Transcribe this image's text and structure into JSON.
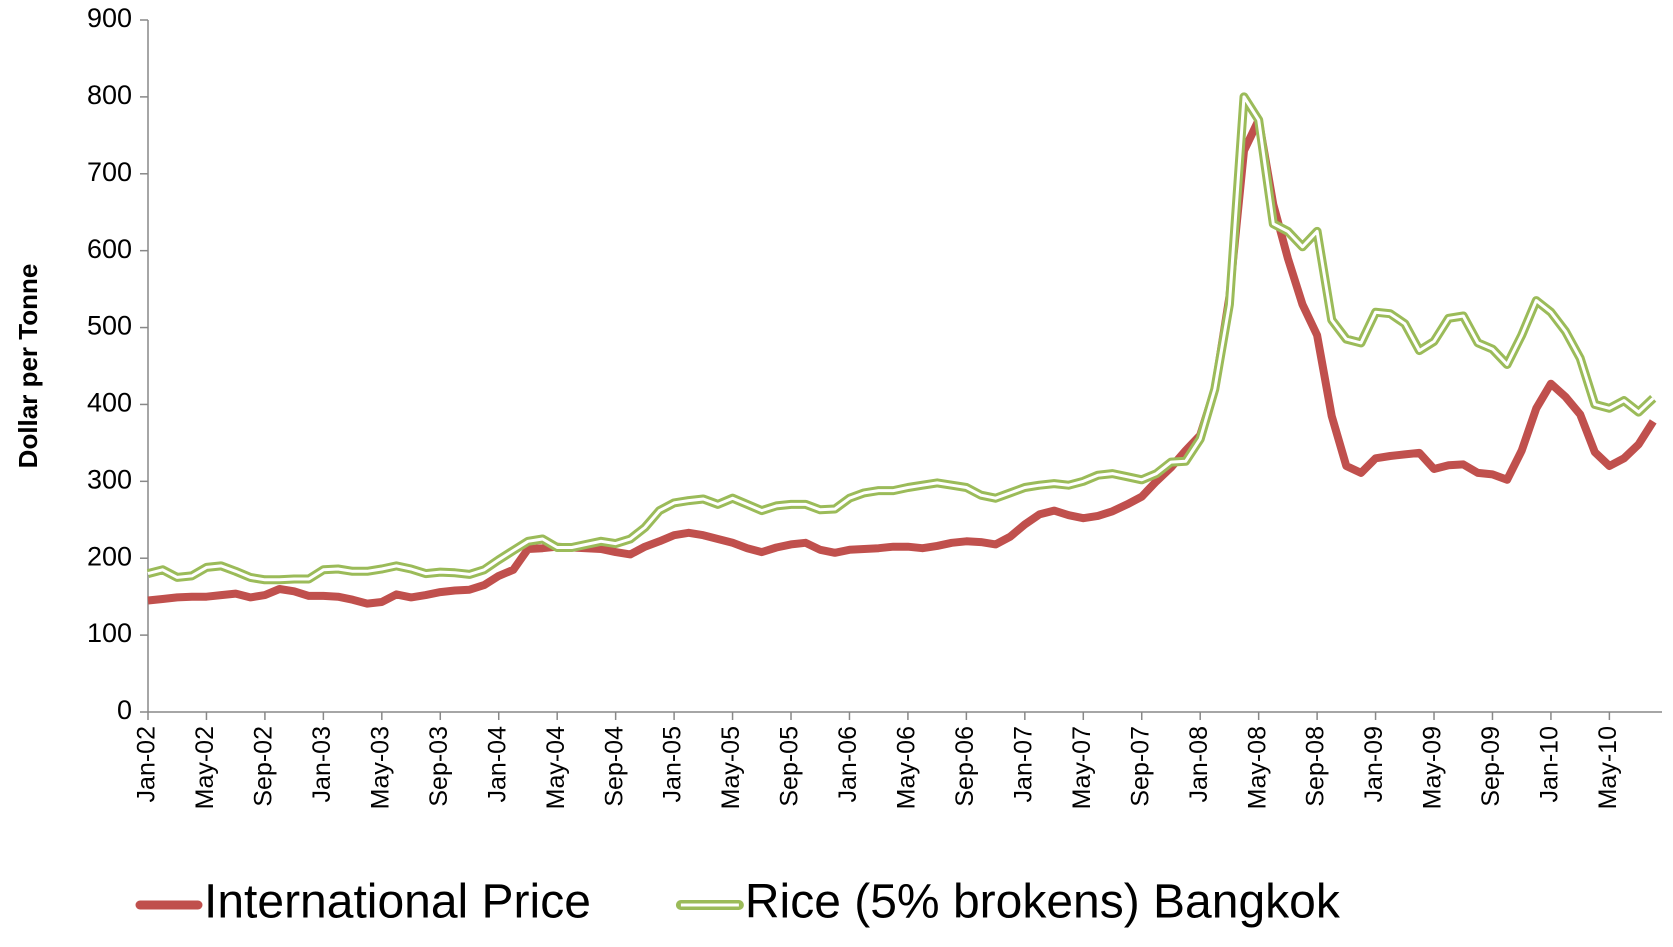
{
  "chart_data": {
    "type": "line",
    "y_label": "Dollar per Tonne",
    "categories": [
      "Jan-02",
      null,
      null,
      null,
      "May-02",
      null,
      null,
      null,
      "Sep-02",
      null,
      null,
      null,
      "Jan-03",
      null,
      null,
      null,
      "May-03",
      null,
      null,
      null,
      "Sep-03",
      null,
      null,
      null,
      "Jan-04",
      null,
      null,
      null,
      "May-04",
      null,
      null,
      null,
      "Sep-04",
      null,
      null,
      null,
      "Jan-05",
      null,
      null,
      null,
      "May-05",
      null,
      null,
      null,
      "Sep-05",
      null,
      null,
      null,
      "Jan-06",
      null,
      null,
      null,
      "May-06",
      null,
      null,
      null,
      "Sep-06",
      null,
      null,
      null,
      "Jan-07",
      null,
      null,
      null,
      "May-07",
      null,
      null,
      null,
      "Sep-07",
      null,
      null,
      null,
      "Jan-08",
      null,
      null,
      null,
      "May-08",
      null,
      null,
      null,
      "Sep-08",
      null,
      null,
      null,
      "Jan-09",
      null,
      null,
      null,
      "May-09",
      null,
      null,
      null,
      "Sep-09",
      null,
      null,
      null,
      "Jan-10",
      null,
      null,
      null,
      "May-10",
      null,
      null,
      null
    ],
    "series": [
      {
        "name": "International Price",
        "color": "#c0504d",
        "line_style": "solid",
        "values": [
          145,
          147,
          149,
          150,
          150,
          152,
          154,
          149,
          152,
          160,
          157,
          151,
          151,
          150,
          146,
          141,
          143,
          153,
          149,
          152,
          156,
          158,
          159,
          165,
          177,
          185,
          212,
          213,
          215,
          214,
          213,
          212,
          208,
          205,
          215,
          222,
          230,
          233,
          230,
          225,
          220,
          213,
          208,
          214,
          218,
          220,
          211,
          207,
          211,
          212,
          213,
          215,
          215,
          213,
          216,
          220,
          222,
          221,
          218,
          228,
          244,
          257,
          262,
          256,
          252,
          255,
          261,
          270,
          280,
          300,
          318,
          340,
          360,
          420,
          540,
          730,
          770,
          660,
          590,
          530,
          490,
          385,
          320,
          311,
          330,
          333,
          335,
          337,
          316,
          321,
          322,
          311,
          309,
          302,
          340,
          395,
          427,
          410,
          387,
          338,
          320,
          330,
          348,
          378
        ]
      },
      {
        "name": "Rice (5% brokens) Bangkok",
        "color": "#9bbb59",
        "line_style": "double",
        "values": [
          180,
          185,
          175,
          177,
          188,
          190,
          183,
          175,
          172,
          172,
          173,
          173,
          185,
          186,
          183,
          183,
          186,
          190,
          186,
          180,
          182,
          181,
          179,
          185,
          198,
          210,
          222,
          225,
          214,
          214,
          218,
          222,
          219,
          225,
          240,
          262,
          272,
          275,
          277,
          270,
          278,
          270,
          262,
          268,
          270,
          270,
          263,
          264,
          278,
          285,
          288,
          288,
          292,
          295,
          298,
          295,
          292,
          282,
          278,
          285,
          292,
          295,
          297,
          295,
          300,
          308,
          310,
          306,
          302,
          310,
          325,
          326,
          355,
          420,
          530,
          800,
          770,
          635,
          625,
          605,
          625,
          510,
          485,
          480,
          520,
          518,
          505,
          470,
          482,
          512,
          515,
          480,
          472,
          452,
          490,
          535,
          520,
          495,
          460,
          400,
          395,
          405,
          390,
          408
        ]
      }
    ],
    "ylim": [
      0,
      900
    ],
    "yticks": [
      0,
      100,
      200,
      300,
      400,
      500,
      600,
      700,
      800,
      900
    ],
    "grid": false,
    "legend": "bottom"
  }
}
